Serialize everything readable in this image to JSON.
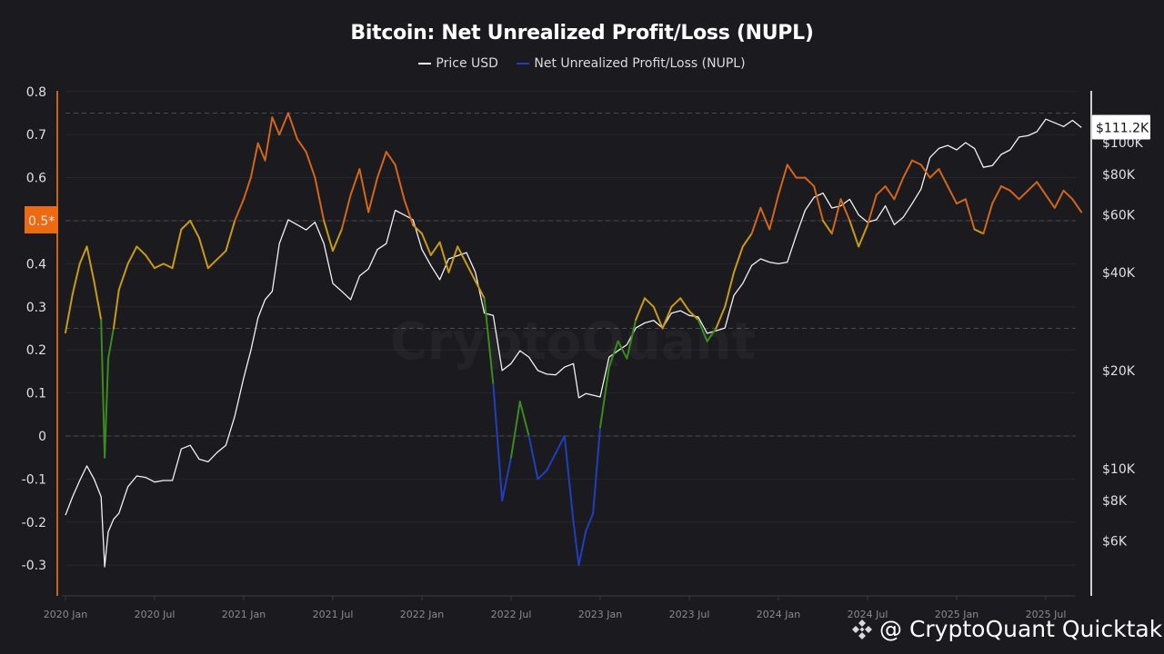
{
  "chart_data": {
    "type": "line",
    "title": "Bitcoin: Net Unrealized Profit/Loss (NUPL)",
    "legend": [
      {
        "name": "Price USD",
        "color": "#ffffff"
      },
      {
        "name": "Net Unrealized Profit/Loss (NUPL)",
        "color": "#1f3fbf"
      }
    ],
    "legend_position": "top-center",
    "xlabel": "",
    "ylabel_left": "",
    "ylabel_right": "",
    "x_ticks": [
      "2020 Jan",
      "2020 Jul",
      "2021 Jan",
      "2021 Jul",
      "2022 Jan",
      "2022 Jul",
      "2023 Jan",
      "2023 Jul",
      "2024 Jan",
      "2024 Jul",
      "2025 Jan",
      "2025 Jul"
    ],
    "y_left_ticks": [
      "0.8",
      "0.7",
      "0.6",
      "0.5*",
      "0.4",
      "0.3",
      "0.2",
      "0.1",
      "0",
      "-0.1",
      "-0.2",
      "-0.3"
    ],
    "y_left_range": [
      -0.37,
      0.8
    ],
    "y_left_highlight": {
      "label": "0.5*",
      "value": 0.5,
      "color": "#ee6a10"
    },
    "y_right_ticks": [
      {
        "label": "$100K",
        "value": 100000
      },
      {
        "label": "$80K",
        "value": 80000
      },
      {
        "label": "$60K",
        "value": 60000
      },
      {
        "label": "$40K",
        "value": 40000
      },
      {
        "label": "$20K",
        "value": 20000
      },
      {
        "label": "$10K",
        "value": 10000
      },
      {
        "label": "$8K",
        "value": 8000
      },
      {
        "label": "$6K",
        "value": 6000
      }
    ],
    "y_right_scale": "log",
    "y_right_current_label": "$111.2K",
    "dashed_reference_lines": [
      0.75,
      0.5,
      0.25,
      0
    ],
    "grid": true,
    "nupl_zone_colors": {
      "capitulation_below_0": "#1f3fbf",
      "hope_fear_0_to_0.25": "#3a8c1e",
      "optimism_0.25_to_0.5": "#c99a16",
      "belief_0.5_to_0.75": "#d2661a"
    },
    "series": [
      {
        "name": "Net Unrealized Profit/Loss (NUPL)",
        "axis": "left",
        "x": [
          2020.0,
          2020.04,
          2020.08,
          2020.12,
          2020.16,
          2020.2,
          2020.22,
          2020.24,
          2020.27,
          2020.3,
          2020.35,
          2020.4,
          2020.45,
          2020.5,
          2020.55,
          2020.6,
          2020.65,
          2020.7,
          2020.75,
          2020.8,
          2020.85,
          2020.9,
          2020.95,
          2021.0,
          2021.04,
          2021.08,
          2021.12,
          2021.16,
          2021.2,
          2021.25,
          2021.3,
          2021.35,
          2021.4,
          2021.45,
          2021.5,
          2021.55,
          2021.6,
          2021.65,
          2021.7,
          2021.75,
          2021.8,
          2021.85,
          2021.9,
          2021.95,
          2022.0,
          2022.05,
          2022.1,
          2022.15,
          2022.2,
          2022.25,
          2022.3,
          2022.35,
          2022.4,
          2022.45,
          2022.5,
          2022.55,
          2022.6,
          2022.65,
          2022.7,
          2022.75,
          2022.8,
          2022.85,
          2022.88,
          2022.92,
          2022.96,
          2023.0,
          2023.05,
          2023.1,
          2023.15,
          2023.2,
          2023.25,
          2023.3,
          2023.35,
          2023.4,
          2023.45,
          2023.5,
          2023.55,
          2023.6,
          2023.65,
          2023.7,
          2023.75,
          2023.8,
          2023.85,
          2023.9,
          2023.95,
          2024.0,
          2024.05,
          2024.1,
          2024.15,
          2024.2,
          2024.25,
          2024.3,
          2024.35,
          2024.4,
          2024.45,
          2024.5,
          2024.55,
          2024.6,
          2024.65,
          2024.7,
          2024.75,
          2024.8,
          2024.85,
          2024.9,
          2024.95,
          2025.0,
          2025.05,
          2025.1,
          2025.15,
          2025.2,
          2025.25,
          2025.3,
          2025.35,
          2025.4,
          2025.45,
          2025.5,
          2025.55,
          2025.6,
          2025.65,
          2025.7
        ],
        "values": [
          0.24,
          0.33,
          0.4,
          0.44,
          0.36,
          0.27,
          -0.05,
          0.18,
          0.25,
          0.34,
          0.4,
          0.44,
          0.42,
          0.39,
          0.4,
          0.39,
          0.48,
          0.5,
          0.46,
          0.39,
          0.41,
          0.43,
          0.5,
          0.55,
          0.6,
          0.68,
          0.64,
          0.74,
          0.7,
          0.75,
          0.69,
          0.66,
          0.6,
          0.5,
          0.43,
          0.48,
          0.56,
          0.62,
          0.52,
          0.6,
          0.66,
          0.63,
          0.55,
          0.49,
          0.47,
          0.42,
          0.45,
          0.38,
          0.44,
          0.4,
          0.36,
          0.32,
          0.12,
          -0.15,
          -0.05,
          0.08,
          0.0,
          -0.1,
          -0.08,
          -0.04,
          0.0,
          -0.2,
          -0.3,
          -0.22,
          -0.18,
          0.02,
          0.16,
          0.22,
          0.18,
          0.27,
          0.32,
          0.3,
          0.25,
          0.3,
          0.32,
          0.29,
          0.27,
          0.22,
          0.25,
          0.3,
          0.38,
          0.44,
          0.47,
          0.53,
          0.48,
          0.56,
          0.63,
          0.6,
          0.6,
          0.58,
          0.5,
          0.47,
          0.55,
          0.5,
          0.44,
          0.49,
          0.56,
          0.58,
          0.55,
          0.6,
          0.64,
          0.63,
          0.6,
          0.62,
          0.58,
          0.54,
          0.55,
          0.48,
          0.47,
          0.54,
          0.58,
          0.57,
          0.55,
          0.57,
          0.59,
          0.56,
          0.53,
          0.57,
          0.55,
          0.52
        ]
      },
      {
        "name": "Price USD",
        "axis": "right",
        "x": [
          2020.0,
          2020.04,
          2020.08,
          2020.12,
          2020.16,
          2020.2,
          2020.22,
          2020.24,
          2020.27,
          2020.3,
          2020.35,
          2020.4,
          2020.45,
          2020.5,
          2020.55,
          2020.6,
          2020.65,
          2020.7,
          2020.75,
          2020.8,
          2020.85,
          2020.9,
          2020.95,
          2021.0,
          2021.04,
          2021.08,
          2021.12,
          2021.16,
          2021.2,
          2021.25,
          2021.3,
          2021.35,
          2021.4,
          2021.45,
          2021.5,
          2021.55,
          2021.6,
          2021.65,
          2021.7,
          2021.75,
          2021.8,
          2021.85,
          2021.9,
          2021.95,
          2022.0,
          2022.05,
          2022.1,
          2022.15,
          2022.2,
          2022.25,
          2022.3,
          2022.35,
          2022.4,
          2022.45,
          2022.5,
          2022.55,
          2022.6,
          2022.65,
          2022.7,
          2022.75,
          2022.8,
          2022.85,
          2022.88,
          2022.92,
          2022.96,
          2023.0,
          2023.05,
          2023.1,
          2023.15,
          2023.2,
          2023.25,
          2023.3,
          2023.35,
          2023.4,
          2023.45,
          2023.5,
          2023.55,
          2023.6,
          2023.65,
          2023.7,
          2023.75,
          2023.8,
          2023.85,
          2023.9,
          2023.95,
          2024.0,
          2024.05,
          2024.1,
          2024.15,
          2024.2,
          2024.25,
          2024.3,
          2024.35,
          2024.4,
          2024.45,
          2024.5,
          2024.55,
          2024.6,
          2024.65,
          2024.7,
          2024.75,
          2024.8,
          2024.85,
          2024.9,
          2024.95,
          2025.0,
          2025.05,
          2025.1,
          2025.15,
          2025.2,
          2025.25,
          2025.3,
          2025.35,
          2025.4,
          2025.45,
          2025.5,
          2025.55,
          2025.6,
          2025.65,
          2025.7
        ],
        "values": [
          7200,
          8200,
          9200,
          10200,
          9300,
          8200,
          5000,
          6400,
          7000,
          7300,
          8800,
          9500,
          9400,
          9100,
          9200,
          9200,
          11500,
          11800,
          10700,
          10500,
          11200,
          11800,
          14500,
          19000,
          23000,
          29000,
          33000,
          35000,
          49000,
          58000,
          56000,
          54000,
          57000,
          49000,
          37000,
          35000,
          33000,
          39000,
          41000,
          47000,
          49000,
          62000,
          60000,
          58000,
          47000,
          42000,
          38000,
          44000,
          45000,
          46000,
          40000,
          30000,
          29500,
          20000,
          21000,
          23000,
          22000,
          20000,
          19500,
          19400,
          20500,
          21000,
          16500,
          17000,
          16800,
          16600,
          22000,
          23000,
          24000,
          27000,
          28000,
          28500,
          27000,
          30000,
          30500,
          29500,
          29200,
          26000,
          26500,
          27000,
          34000,
          37000,
          42000,
          44000,
          43000,
          42500,
          43000,
          52000,
          62000,
          68000,
          70000,
          63000,
          64000,
          67000,
          60000,
          57000,
          58000,
          64000,
          56000,
          59000,
          65000,
          72000,
          90000,
          96000,
          98000,
          95000,
          100000,
          96000,
          84000,
          85000,
          92000,
          95000,
          104000,
          105000,
          108000,
          118000,
          115000,
          112000,
          117000,
          111200
        ]
      }
    ]
  },
  "watermark": "CryptoQuant",
  "credit": {
    "text": "@ CryptoQuant Quicktak...",
    "icon": "binance-icon"
  }
}
